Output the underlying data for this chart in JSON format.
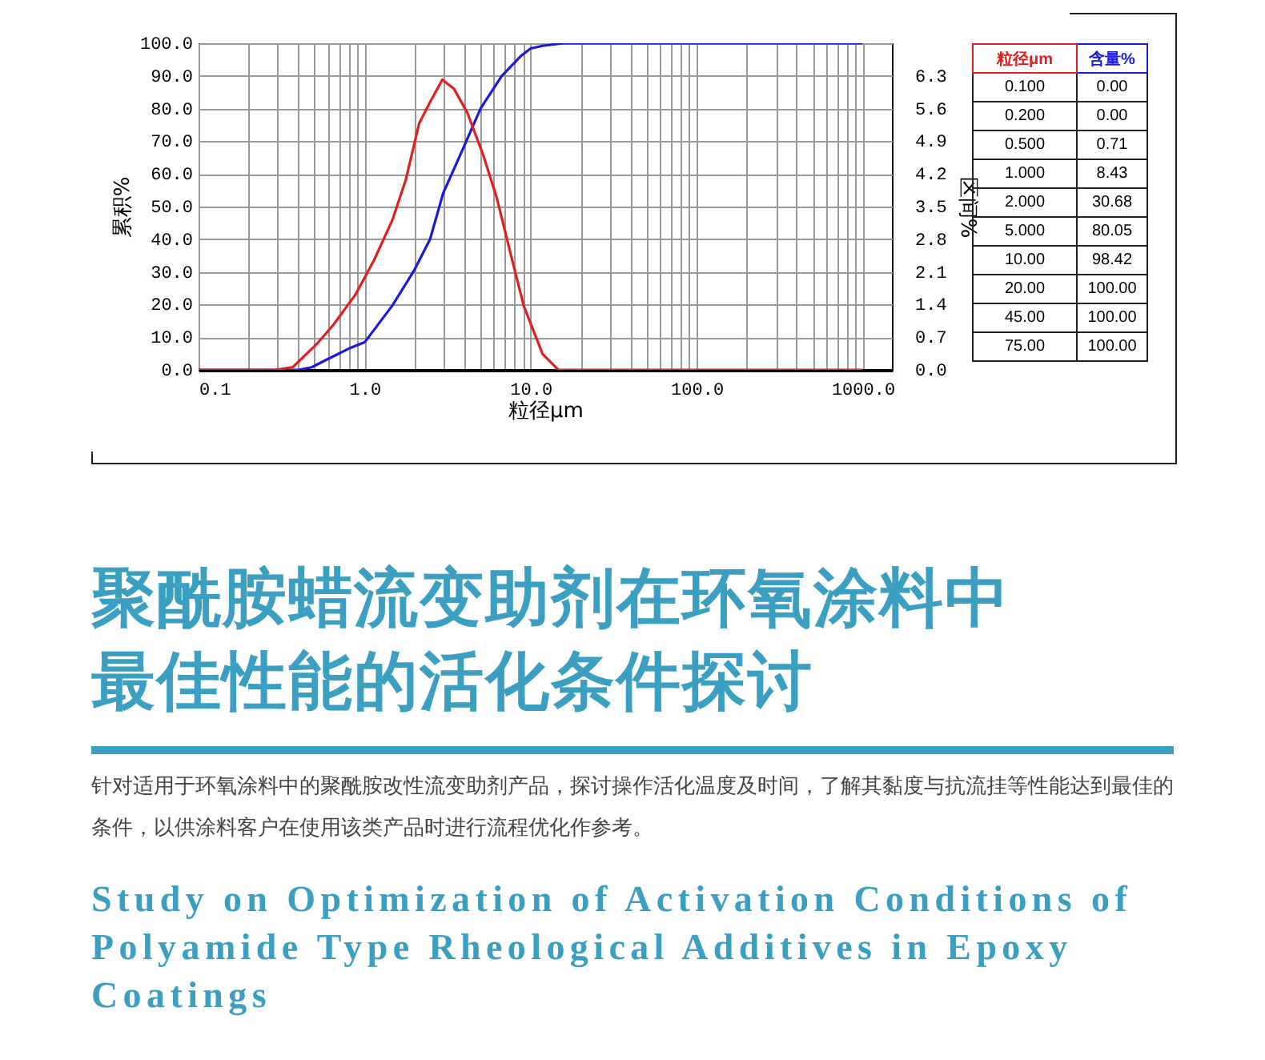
{
  "chart_data": [
    {
      "type": "line",
      "xlabel": "粒径μm",
      "ylabel": "累积%",
      "y2label": "区间%",
      "log": "x",
      "grid": true,
      "xlim": [
        0.1,
        1500
      ],
      "xticks": [
        {
          "value": 0.1,
          "label": "0.1"
        },
        {
          "value": 0.2,
          "label": null
        },
        {
          "value": 0.3,
          "label": null
        },
        {
          "value": 0.4,
          "label": null
        },
        {
          "value": 0.5,
          "label": null
        },
        {
          "value": 0.6,
          "label": null
        },
        {
          "value": 0.7,
          "label": null
        },
        {
          "value": 0.8,
          "label": null
        },
        {
          "value": 0.9,
          "label": null
        },
        {
          "value": 1,
          "label": "1.0"
        },
        {
          "value": 2,
          "label": null
        },
        {
          "value": 3,
          "label": null
        },
        {
          "value": 4,
          "label": null
        },
        {
          "value": 5,
          "label": null
        },
        {
          "value": 6,
          "label": null
        },
        {
          "value": 7,
          "label": null
        },
        {
          "value": 8,
          "label": null
        },
        {
          "value": 9,
          "label": null
        },
        {
          "value": 10,
          "label": "10.0"
        },
        {
          "value": 20,
          "label": null
        },
        {
          "value": 30,
          "label": null
        },
        {
          "value": 40,
          "label": null
        },
        {
          "value": 50,
          "label": null
        },
        {
          "value": 60,
          "label": null
        },
        {
          "value": 70,
          "label": null
        },
        {
          "value": 80,
          "label": null
        },
        {
          "value": 90,
          "label": null
        },
        {
          "value": 100,
          "label": "100.0"
        },
        {
          "value": 200,
          "label": null
        },
        {
          "value": 300,
          "label": null
        },
        {
          "value": 400,
          "label": null
        },
        {
          "value": 500,
          "label": null
        },
        {
          "value": 600,
          "label": null
        },
        {
          "value": 700,
          "label": null
        },
        {
          "value": 800,
          "label": null
        },
        {
          "value": 900,
          "label": null
        },
        {
          "value": 1000,
          "label": "1000.0"
        }
      ],
      "ylim": [
        0,
        100
      ],
      "yticks": [
        {
          "value": 0,
          "label": "0.0"
        },
        {
          "value": 10,
          "label": "10.0"
        },
        {
          "value": 20,
          "label": "20.0"
        },
        {
          "value": 30,
          "label": "30.0"
        },
        {
          "value": 40,
          "label": "40.0"
        },
        {
          "value": 50,
          "label": "50.0"
        },
        {
          "value": 60,
          "label": "60.0"
        },
        {
          "value": 70,
          "label": "70.0"
        },
        {
          "value": 80,
          "label": "80.0"
        },
        {
          "value": 90,
          "label": "90.0"
        },
        {
          "value": 100,
          "label": "100.0"
        }
      ],
      "y2lim": [
        0,
        7
      ],
      "y2ticks": [
        {
          "value": 0,
          "label": "0.0"
        },
        0.7,
        1.4,
        2.1,
        2.8,
        3.5,
        4.2,
        4.9,
        5.6,
        6.3,
        {
          "value": 7,
          "label": null
        }
      ],
      "series": [
        {
          "color": "#1a1ad8",
          "x": [
            0.1,
            0.4,
            0.48,
            0.6,
            0.81,
            1,
            1.47,
            2,
            2.48,
            2.97,
            3.86,
            5,
            6.7,
            8.7,
            10,
            11.8,
            15.8,
            1000
          ],
          "values": [
            0,
            0,
            0.8,
            3.3,
            6.6,
            8.43,
            19.7,
            30.68,
            40,
            54,
            67,
            80.05,
            90,
            96,
            98.42,
            99.2,
            100,
            100
          ]
        },
        {
          "color": "#e02020",
          "axis": "y2",
          "x": [
            0.1,
            0.29,
            0.37,
            0.52,
            0.65,
            0.88,
            1.14,
            1.47,
            1.77,
            2.13,
            2.48,
            2.94,
            3.46,
            4.16,
            5.2,
            6.26,
            7.54,
            9.08,
            11.8,
            14.7,
            1000
          ],
          "values": [
            0,
            0,
            0.06,
            0.57,
            0.97,
            1.61,
            2.35,
            3.21,
            4.07,
            5.28,
            5.74,
            6.22,
            6.02,
            5.51,
            4.59,
            3.68,
            2.52,
            1.38,
            0.34,
            0,
            0
          ]
        }
      ]
    },
    {
      "type": "other",
      "categories": [
        "粒径μm",
        "含量%"
      ],
      "colors": [
        "#e02020",
        "#1a1ad8"
      ],
      "cell_labels": [
        [
          "0.100",
          "0.00"
        ],
        [
          "0.200",
          "0.00"
        ],
        [
          "0.500",
          "0.71"
        ],
        [
          "1.000",
          "8.43"
        ],
        [
          "2.000",
          "30.68"
        ],
        [
          "5.000",
          "80.05"
        ],
        [
          "10.00",
          "98.42"
        ],
        [
          "20.00",
          "100.00"
        ],
        [
          "45.00",
          "100.00"
        ],
        [
          "75.00",
          "100.00"
        ]
      ]
    },
    {
      "type": "other",
      "title": "聚酰胺蜡流变助剂在环氧涂料中最佳性能的活化条件探讨",
      "subtitle": "针对适用于环氧涂料中的聚酰胺改性流变助剂产品，探讨操作活化温度及时间，了解其黏度与抗流挂等性能达到最佳的条件，以供涂料客户在使用该类产品时进行流程优化作参考。",
      "annotations": [
        "Study on Optimization of Activation Conditions of Polyamide Type Rheological Additives in Epoxy Coatings"
      ]
    }
  ]
}
